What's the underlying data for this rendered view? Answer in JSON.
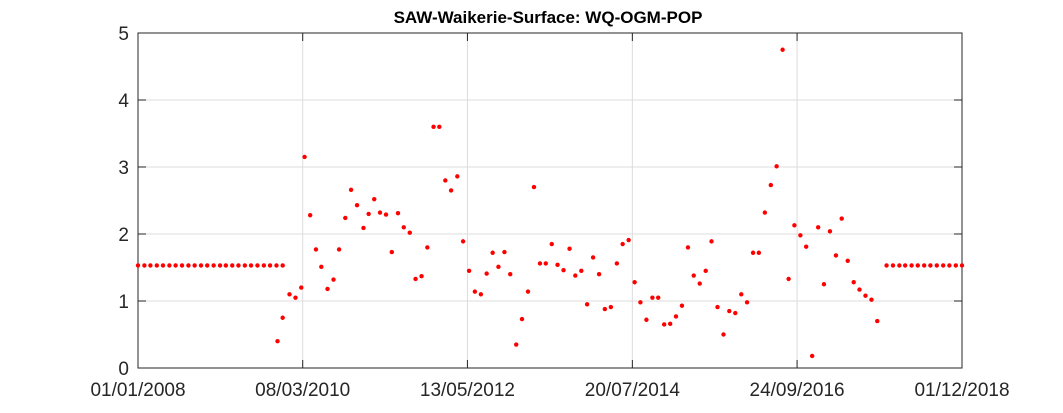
{
  "chart_data": {
    "type": "scatter",
    "title": "SAW-Waikerie-Surface: WQ-OGM-POP",
    "xlabel": "",
    "ylabel": "",
    "x_axis_type": "date",
    "xlim": [
      "2008-01-01",
      "2018-12-01"
    ],
    "ylim": [
      0,
      5
    ],
    "x_tick_labels": [
      "01/01/2008",
      "08/03/2010",
      "13/05/2012",
      "20/07/2014",
      "24/09/2016",
      "01/12/2018"
    ],
    "x_tick_values": [
      "2008-01-01",
      "2010-03-08",
      "2012-05-13",
      "2014-07-20",
      "2016-09-24",
      "2018-12-01"
    ],
    "y_ticks": [
      0,
      1,
      2,
      3,
      4,
      5
    ],
    "grid": true,
    "marker_color": "#ff0000",
    "series": [
      {
        "points": [
          [
            "2008-01-01",
            1.53
          ],
          [
            "2008-02-01",
            1.53
          ],
          [
            "2008-03-01",
            1.53
          ],
          [
            "2008-04-01",
            1.53
          ],
          [
            "2008-05-01",
            1.53
          ],
          [
            "2008-06-01",
            1.53
          ],
          [
            "2008-07-01",
            1.53
          ],
          [
            "2008-08-01",
            1.53
          ],
          [
            "2008-09-01",
            1.53
          ],
          [
            "2008-10-01",
            1.53
          ],
          [
            "2008-11-01",
            1.53
          ],
          [
            "2008-12-01",
            1.53
          ],
          [
            "2009-01-01",
            1.53
          ],
          [
            "2009-02-01",
            1.53
          ],
          [
            "2009-03-01",
            1.53
          ],
          [
            "2009-04-01",
            1.53
          ],
          [
            "2009-05-01",
            1.53
          ],
          [
            "2009-06-01",
            1.53
          ],
          [
            "2009-07-01",
            1.53
          ],
          [
            "2009-08-01",
            1.53
          ],
          [
            "2009-09-01",
            1.53
          ],
          [
            "2009-10-01",
            1.53
          ],
          [
            "2009-11-01",
            1.53
          ],
          [
            "2009-12-01",
            1.53
          ],
          [
            "2009-11-06",
            0.4
          ],
          [
            "2009-12-01",
            0.75
          ],
          [
            "2010-01-03",
            1.1
          ],
          [
            "2010-02-01",
            1.05
          ],
          [
            "2010-03-01",
            1.2
          ],
          [
            "2010-03-17",
            3.15
          ],
          [
            "2010-04-13",
            2.28
          ],
          [
            "2010-05-11",
            1.77
          ],
          [
            "2010-06-06",
            1.51
          ],
          [
            "2010-07-06",
            1.18
          ],
          [
            "2010-08-04",
            1.32
          ],
          [
            "2010-08-31",
            1.77
          ],
          [
            "2010-09-30",
            2.24
          ],
          [
            "2010-10-28",
            2.66
          ],
          [
            "2010-11-26",
            2.43
          ],
          [
            "2010-12-27",
            2.09
          ],
          [
            "2011-01-21",
            2.3
          ],
          [
            "2011-02-17",
            2.52
          ],
          [
            "2011-03-17",
            2.32
          ],
          [
            "2011-04-15",
            2.29
          ],
          [
            "2011-05-13",
            1.73
          ],
          [
            "2011-06-12",
            2.31
          ],
          [
            "2011-07-10",
            2.1
          ],
          [
            "2011-08-08",
            2.02
          ],
          [
            "2011-09-05",
            1.33
          ],
          [
            "2011-10-04",
            1.37
          ],
          [
            "2011-11-01",
            1.8
          ],
          [
            "2011-12-01",
            3.6
          ],
          [
            "2011-12-29",
            3.6
          ],
          [
            "2012-01-27",
            2.8
          ],
          [
            "2012-02-24",
            2.65
          ],
          [
            "2012-03-25",
            2.86
          ],
          [
            "2012-04-22",
            1.89
          ],
          [
            "2012-05-21",
            1.45
          ],
          [
            "2012-06-18",
            1.14
          ],
          [
            "2012-07-17",
            1.1
          ],
          [
            "2012-08-14",
            1.41
          ],
          [
            "2012-09-12",
            1.72
          ],
          [
            "2012-10-10",
            1.51
          ],
          [
            "2012-11-08",
            1.73
          ],
          [
            "2012-12-06",
            1.4
          ],
          [
            "2013-01-04",
            0.35
          ],
          [
            "2013-02-01",
            0.73
          ],
          [
            "2013-03-02",
            1.14
          ],
          [
            "2013-03-31",
            2.7
          ],
          [
            "2013-04-29",
            1.56
          ],
          [
            "2013-05-27",
            1.56
          ],
          [
            "2013-06-25",
            1.85
          ],
          [
            "2013-07-23",
            1.54
          ],
          [
            "2013-08-21",
            1.46
          ],
          [
            "2013-09-19",
            1.78
          ],
          [
            "2013-10-17",
            1.38
          ],
          [
            "2013-11-15",
            1.45
          ],
          [
            "2013-12-13",
            0.95
          ],
          [
            "2014-01-11",
            1.65
          ],
          [
            "2014-02-09",
            1.4
          ],
          [
            "2014-03-09",
            0.88
          ],
          [
            "2014-04-07",
            0.91
          ],
          [
            "2014-05-06",
            1.56
          ],
          [
            "2014-06-03",
            1.85
          ],
          [
            "2014-07-02",
            1.91
          ],
          [
            "2014-07-31",
            1.28
          ],
          [
            "2014-08-28",
            0.98
          ],
          [
            "2014-09-26",
            0.72
          ],
          [
            "2014-10-25",
            1.05
          ],
          [
            "2014-11-22",
            1.05
          ],
          [
            "2014-12-21",
            0.65
          ],
          [
            "2015-01-19",
            0.66
          ],
          [
            "2015-02-16",
            0.77
          ],
          [
            "2015-03-17",
            0.93
          ],
          [
            "2015-04-15",
            1.8
          ],
          [
            "2015-05-13",
            1.38
          ],
          [
            "2015-06-11",
            1.26
          ],
          [
            "2015-07-10",
            1.45
          ],
          [
            "2015-08-07",
            1.89
          ],
          [
            "2015-09-05",
            0.91
          ],
          [
            "2015-10-04",
            0.5
          ],
          [
            "2015-11-01",
            0.85
          ],
          [
            "2015-11-30",
            0.82
          ],
          [
            "2015-12-29",
            1.1
          ],
          [
            "2016-01-26",
            0.98
          ],
          [
            "2016-02-24",
            1.72
          ],
          [
            "2016-03-23",
            1.72
          ],
          [
            "2016-04-21",
            2.32
          ],
          [
            "2016-05-20",
            2.73
          ],
          [
            "2016-06-17",
            3.01
          ],
          [
            "2016-07-16",
            4.75
          ],
          [
            "2016-08-14",
            1.33
          ],
          [
            "2016-09-11",
            2.13
          ],
          [
            "2016-10-10",
            1.98
          ],
          [
            "2016-11-07",
            1.81
          ],
          [
            "2016-12-06",
            0.18
          ],
          [
            "2017-01-04",
            2.1
          ],
          [
            "2017-02-01",
            1.25
          ],
          [
            "2017-03-02",
            2.04
          ],
          [
            "2017-03-31",
            1.68
          ],
          [
            "2017-04-28",
            2.23
          ],
          [
            "2017-05-27",
            1.6
          ],
          [
            "2017-06-25",
            1.28
          ],
          [
            "2017-07-23",
            1.17
          ],
          [
            "2017-08-21",
            1.08
          ],
          [
            "2017-09-19",
            1.02
          ],
          [
            "2017-10-17",
            0.7
          ],
          [
            "2017-12-01",
            1.53
          ],
          [
            "2018-01-01",
            1.53
          ],
          [
            "2018-02-01",
            1.53
          ],
          [
            "2018-03-01",
            1.53
          ],
          [
            "2018-04-01",
            1.53
          ],
          [
            "2018-05-01",
            1.53
          ],
          [
            "2018-06-01",
            1.53
          ],
          [
            "2018-07-01",
            1.53
          ],
          [
            "2018-08-01",
            1.53
          ],
          [
            "2018-09-01",
            1.53
          ],
          [
            "2018-10-01",
            1.53
          ],
          [
            "2018-11-01",
            1.53
          ],
          [
            "2018-12-01",
            1.53
          ]
        ]
      }
    ]
  }
}
